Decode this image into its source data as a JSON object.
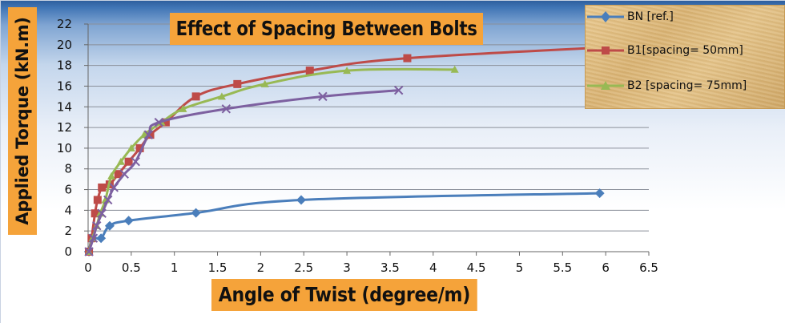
{
  "chart_data": {
    "type": "line",
    "title": "Effect of Spacing Between Bolts",
    "xlabel": "Angle of Twist (degree/m)",
    "ylabel": "Applied Torque (kN.m)",
    "xlim": [
      0,
      6.5
    ],
    "ylim": [
      0,
      22
    ],
    "xticks": [
      "0",
      "0.5",
      "1",
      "1.5",
      "2",
      "2.5",
      "3",
      "3.5",
      "4",
      "4.5",
      "5",
      "5.5",
      "6",
      "6.5"
    ],
    "yticks": [
      "0",
      "2",
      "4",
      "6",
      "8",
      "10",
      "12",
      "14",
      "16",
      "18",
      "20",
      "22"
    ],
    "grid": true,
    "legend_position": "top-right",
    "series": [
      {
        "name": "BN [ref.]",
        "color": "#4a7ebb",
        "marker": "diamond",
        "x": [
          0.01,
          0.05,
          0.15,
          0.25,
          0.47,
          1.25,
          2.47,
          5.93
        ],
        "y": [
          0,
          1.3,
          1.3,
          2.5,
          3.0,
          3.75,
          5.0,
          5.65
        ]
      },
      {
        "name": "B1[spacing= 50mm]",
        "color": "#be4b48",
        "marker": "square",
        "x": [
          0.01,
          0.04,
          0.08,
          0.11,
          0.16,
          0.25,
          0.35,
          0.47,
          0.6,
          0.72,
          0.9,
          1.25,
          1.73,
          2.57,
          3.7,
          6.6
        ],
        "y": [
          0,
          1.3,
          3.7,
          5.0,
          6.2,
          6.5,
          7.5,
          8.7,
          10.0,
          11.3,
          12.5,
          15.0,
          16.2,
          17.5,
          18.7,
          20.0
        ]
      },
      {
        "name": "B2 [spacing= 75mm]",
        "color": "#98b954",
        "marker": "triangle",
        "x": [
          0.01,
          0.05,
          0.1,
          0.14,
          0.2,
          0.27,
          0.38,
          0.5,
          0.65,
          0.85,
          1.1,
          1.55,
          2.05,
          3.0,
          4.25
        ],
        "y": [
          0,
          1.3,
          2.5,
          3.7,
          5.0,
          7.3,
          8.7,
          10.0,
          11.3,
          12.5,
          13.8,
          15.0,
          16.2,
          17.5,
          17.6
        ]
      },
      {
        "name": "",
        "color": "#7d60a0",
        "marker": "x",
        "x": [
          0.01,
          0.06,
          0.1,
          0.16,
          0.23,
          0.3,
          0.42,
          0.55,
          0.7,
          0.82,
          1.6,
          2.72,
          3.6
        ],
        "y": [
          0,
          1.3,
          2.5,
          3.7,
          5.0,
          6.2,
          7.5,
          8.7,
          11.3,
          12.5,
          13.8,
          15.0,
          15.6
        ]
      }
    ]
  }
}
